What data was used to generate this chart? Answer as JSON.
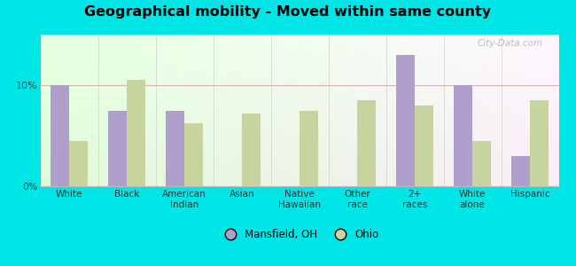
{
  "title": "Geographical mobility - Moved within same county",
  "categories": [
    "White",
    "Black",
    "American\nIndian",
    "Asian",
    "Native\nHawaiian",
    "Other\nrace",
    "2+\nraces",
    "White\nalone",
    "Hispanic"
  ],
  "mansfield": [
    10.0,
    7.5,
    7.5,
    0,
    0,
    0,
    13.0,
    10.0,
    3.0
  ],
  "ohio": [
    4.5,
    10.5,
    6.2,
    7.2,
    7.5,
    8.5,
    8.0,
    4.5,
    8.5
  ],
  "mansfield_color": "#b09fcc",
  "ohio_color": "#c8d4a0",
  "outer_bg": "#00e5e5",
  "yticks": [
    0,
    10
  ],
  "ylim": [
    0,
    15
  ],
  "bar_width": 0.32,
  "legend_mansfield": "Mansfield, OH",
  "legend_ohio": "Ohio",
  "watermark": "City-Data.com",
  "bg_colors_lr": [
    "#d4ecc8",
    "#f5f5f0"
  ],
  "bg_colors_tb": [
    "#f0f8ea",
    "#fafff5"
  ]
}
